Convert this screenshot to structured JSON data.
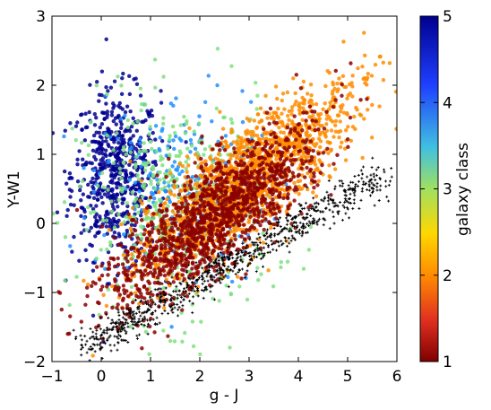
{
  "chart_data": {
    "type": "scatter",
    "xlabel": "g - J",
    "ylabel": "Y-W1",
    "xlim": [
      -1,
      6
    ],
    "ylim": [
      -2,
      3
    ],
    "xticks": [
      "−1",
      "0",
      "1",
      "2",
      "3",
      "4",
      "5",
      "6"
    ],
    "xtick_values": [
      -1,
      0,
      1,
      2,
      3,
      4,
      5,
      6
    ],
    "yticks": [
      "−2",
      "−1",
      "0",
      "1",
      "2",
      "3"
    ],
    "ytick_values": [
      -2,
      -1,
      0,
      1,
      2,
      3
    ],
    "grid": false,
    "colorbar": {
      "label": "galaxy class",
      "range": [
        1,
        5
      ],
      "ticks": [
        "1",
        "2",
        "3",
        "4",
        "5"
      ],
      "tick_values": [
        1,
        2,
        3,
        4,
        5
      ],
      "colormap": [
        "#7f0000",
        "#e03020",
        "#ff8c00",
        "#ffd700",
        "#a0e060",
        "#40c0e0",
        "#1e40ff",
        "#00008f"
      ]
    },
    "series": [
      {
        "class": 5,
        "marker": "dot",
        "color": "#00008f",
        "center": [
          0.3,
          0.7
        ],
        "spread": [
          0.45,
          0.6
        ],
        "count": 600
      },
      {
        "class": 4,
        "marker": "dot",
        "color": "#1e90ff",
        "center": [
          1.6,
          0.5
        ],
        "spread": [
          0.9,
          0.7
        ],
        "count": 260
      },
      {
        "class": 3,
        "marker": "dot",
        "color": "#7fe07f",
        "center": [
          1.5,
          0.2
        ],
        "spread": [
          1.0,
          0.8
        ],
        "count": 450
      },
      {
        "class": 2,
        "marker": "dot",
        "color": "#ff8c00",
        "center": [
          2.9,
          0.6
        ],
        "spread": [
          1.0,
          0.8
        ],
        "count": 1600
      },
      {
        "class": 1,
        "marker": "dot",
        "color": "#8b0000",
        "center": [
          2.3,
          0.1
        ],
        "spread": [
          1.0,
          0.75
        ],
        "count": 1400
      },
      {
        "class": "star",
        "marker": "star",
        "color": "#000000",
        "center": [
          1.6,
          -1.2
        ],
        "spread": [
          1.5,
          0.4
        ],
        "count": 800
      }
    ]
  }
}
